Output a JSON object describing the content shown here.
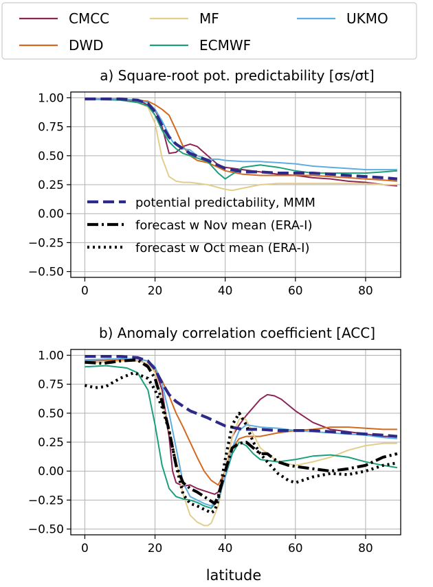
{
  "top_legend": {
    "entries": [
      {
        "label": "CMCC",
        "color": "#8c2355"
      },
      {
        "label": "DWD",
        "color": "#d2691e"
      },
      {
        "label": "MF",
        "color": "#e3cd8a"
      },
      {
        "label": "ECMWF",
        "color": "#17a07a"
      },
      {
        "label": "UKMO",
        "color": "#5dade2"
      }
    ]
  },
  "chart_data": [
    {
      "type": "line",
      "title": "a) Square-root pot. predictability [σs/σt]",
      "xlim": [
        -4,
        90
      ],
      "ylim": [
        -0.55,
        1.05
      ],
      "xticks": [
        0,
        20,
        40,
        60,
        80
      ],
      "yticks": [
        1.0,
        0.75,
        0.5,
        0.25,
        0.0,
        -0.25,
        -0.5
      ],
      "ytick_labels": [
        "1.00",
        "0.75",
        "0.50",
        "0.25",
        "0.00",
        "−0.25",
        "−0.50"
      ],
      "grid": true,
      "legend_position": "center-left",
      "series": [
        {
          "name": "CMCC",
          "color": "#8c2355",
          "style": "solid",
          "x": [
            0,
            10,
            16,
            20,
            22,
            24,
            26,
            28,
            30,
            32,
            35,
            38,
            40,
            45,
            50,
            55,
            60,
            65,
            70,
            75,
            80,
            85,
            89
          ],
          "y": [
            0.99,
            0.99,
            0.97,
            0.9,
            0.75,
            0.52,
            0.53,
            0.58,
            0.6,
            0.58,
            0.5,
            0.42,
            0.4,
            0.38,
            0.36,
            0.34,
            0.33,
            0.31,
            0.3,
            0.28,
            0.27,
            0.25,
            0.24
          ]
        },
        {
          "name": "DWD",
          "color": "#d2691e",
          "style": "solid",
          "x": [
            0,
            10,
            15,
            18,
            20,
            22,
            24,
            26,
            28,
            30,
            32,
            35,
            38,
            40,
            45,
            50,
            55,
            60,
            65,
            70,
            75,
            80,
            85,
            89
          ],
          "y": [
            0.99,
            0.99,
            0.98,
            0.97,
            0.94,
            0.9,
            0.85,
            0.72,
            0.58,
            0.5,
            0.46,
            0.44,
            0.4,
            0.37,
            0.34,
            0.33,
            0.33,
            0.33,
            0.33,
            0.32,
            0.31,
            0.3,
            0.29,
            0.28
          ]
        },
        {
          "name": "MF",
          "color": "#e3cd8a",
          "style": "solid",
          "x": [
            0,
            10,
            15,
            18,
            20,
            22,
            24,
            26,
            28,
            30,
            35,
            40,
            42,
            45,
            50,
            55,
            60,
            65,
            70,
            75,
            80,
            85,
            89
          ],
          "y": [
            0.99,
            0.98,
            0.96,
            0.92,
            0.78,
            0.48,
            0.32,
            0.28,
            0.27,
            0.27,
            0.25,
            0.21,
            0.2,
            0.22,
            0.25,
            0.26,
            0.26,
            0.26,
            0.26,
            0.26,
            0.26,
            0.25,
            0.25
          ]
        },
        {
          "name": "ECMWF",
          "color": "#17a07a",
          "style": "solid",
          "x": [
            0,
            10,
            15,
            18,
            20,
            22,
            24,
            26,
            28,
            30,
            32,
            35,
            38,
            40,
            42,
            45,
            50,
            55,
            60,
            65,
            70,
            75,
            80,
            85,
            89
          ],
          "y": [
            0.99,
            0.98,
            0.96,
            0.93,
            0.85,
            0.72,
            0.62,
            0.56,
            0.52,
            0.5,
            0.48,
            0.45,
            0.35,
            0.3,
            0.34,
            0.4,
            0.42,
            0.4,
            0.37,
            0.35,
            0.35,
            0.35,
            0.35,
            0.36,
            0.37
          ]
        },
        {
          "name": "UKMO",
          "color": "#5dade2",
          "style": "solid",
          "x": [
            0,
            10,
            15,
            18,
            20,
            22,
            25,
            28,
            30,
            32,
            35,
            38,
            40,
            45,
            50,
            55,
            60,
            65,
            70,
            75,
            80,
            85,
            89
          ],
          "y": [
            0.99,
            0.99,
            0.98,
            0.96,
            0.9,
            0.8,
            0.62,
            0.56,
            0.55,
            0.5,
            0.47,
            0.47,
            0.46,
            0.45,
            0.45,
            0.44,
            0.43,
            0.41,
            0.4,
            0.39,
            0.38,
            0.38,
            0.38
          ]
        },
        {
          "name": "potential predictability, MMM",
          "color": "#2e2a8a",
          "style": "dashed",
          "x": [
            0,
            10,
            15,
            18,
            20,
            22,
            24,
            26,
            28,
            30,
            35,
            40,
            45,
            50,
            55,
            60,
            65,
            70,
            75,
            80,
            85,
            89
          ],
          "y": [
            0.99,
            0.99,
            0.98,
            0.95,
            0.88,
            0.76,
            0.66,
            0.6,
            0.56,
            0.52,
            0.46,
            0.39,
            0.36,
            0.36,
            0.35,
            0.35,
            0.35,
            0.34,
            0.33,
            0.32,
            0.31,
            0.3
          ]
        }
      ]
    },
    {
      "type": "line",
      "title": "b) Anomaly correlation coefficient [ACC]",
      "xlabel": "latitude",
      "xlim": [
        -4,
        90
      ],
      "ylim": [
        -0.55,
        1.05
      ],
      "xticks": [
        0,
        20,
        40,
        60,
        80
      ],
      "xtick_labels": [
        "0",
        "20",
        "40",
        "60",
        "80"
      ],
      "yticks": [
        1.0,
        0.75,
        0.5,
        0.25,
        0.0,
        -0.25,
        -0.5
      ],
      "ytick_labels": [
        "1.00",
        "0.75",
        "0.50",
        "0.25",
        "0.00",
        "−0.25",
        "−0.50"
      ],
      "grid": true,
      "series": [
        {
          "name": "CMCC",
          "color": "#8c2355",
          "style": "solid",
          "x": [
            0,
            10,
            16,
            20,
            22,
            24,
            25,
            26,
            28,
            30,
            32,
            35,
            37,
            38,
            40,
            42,
            44,
            46,
            48,
            50,
            52,
            54,
            56,
            60,
            65,
            70,
            75,
            80,
            85,
            89
          ],
          "y": [
            0.95,
            0.96,
            0.95,
            0.88,
            0.7,
            0.3,
            0.0,
            -0.1,
            -0.13,
            -0.12,
            -0.15,
            -0.18,
            -0.2,
            -0.18,
            0.0,
            0.3,
            0.4,
            0.48,
            0.55,
            0.62,
            0.66,
            0.65,
            0.62,
            0.52,
            0.42,
            0.36,
            0.34,
            0.32,
            0.3,
            0.3
          ]
        },
        {
          "name": "DWD",
          "color": "#d2691e",
          "style": "solid",
          "x": [
            0,
            10,
            15,
            18,
            20,
            22,
            24,
            26,
            28,
            30,
            32,
            34,
            36,
            38,
            40,
            42,
            44,
            46,
            48,
            50,
            55,
            60,
            65,
            70,
            75,
            80,
            85,
            89
          ],
          "y": [
            0.95,
            0.96,
            0.97,
            0.95,
            0.88,
            0.78,
            0.65,
            0.5,
            0.38,
            0.25,
            0.12,
            0.0,
            -0.08,
            -0.12,
            0.0,
            0.2,
            0.28,
            0.3,
            0.3,
            0.3,
            0.33,
            0.35,
            0.36,
            0.38,
            0.38,
            0.37,
            0.36,
            0.36
          ]
        },
        {
          "name": "MF",
          "color": "#e3cd8a",
          "style": "solid",
          "x": [
            0,
            10,
            15,
            18,
            20,
            22,
            24,
            26,
            28,
            30,
            32,
            34,
            35,
            36,
            38,
            40,
            42,
            44,
            45,
            46,
            48,
            50,
            55,
            60,
            65,
            70,
            75,
            80,
            85,
            89
          ],
          "y": [
            0.93,
            0.95,
            0.95,
            0.93,
            0.85,
            0.6,
            0.35,
            0.1,
            -0.2,
            -0.38,
            -0.44,
            -0.47,
            -0.47,
            -0.45,
            -0.3,
            0.0,
            0.3,
            0.45,
            0.46,
            0.44,
            0.32,
            0.2,
            0.08,
            0.05,
            0.08,
            0.12,
            0.18,
            0.22,
            0.24,
            0.24
          ]
        },
        {
          "name": "ECMWF",
          "color": "#17a07a",
          "style": "solid",
          "x": [
            0,
            6,
            12,
            15,
            18,
            20,
            22,
            24,
            26,
            28,
            30,
            32,
            34,
            36,
            38,
            40,
            42,
            44,
            46,
            48,
            50,
            55,
            60,
            65,
            70,
            75,
            80,
            85,
            89
          ],
          "y": [
            0.9,
            0.91,
            0.89,
            0.85,
            0.7,
            0.4,
            0.05,
            -0.15,
            -0.22,
            -0.24,
            -0.25,
            -0.27,
            -0.3,
            -0.32,
            -0.25,
            -0.05,
            0.15,
            0.25,
            0.22,
            0.15,
            0.1,
            0.08,
            0.1,
            0.13,
            0.14,
            0.12,
            0.08,
            0.05,
            0.03
          ]
        },
        {
          "name": "UKMO",
          "color": "#5dade2",
          "style": "solid",
          "x": [
            0,
            10,
            15,
            18,
            20,
            22,
            24,
            26,
            28,
            30,
            32,
            34,
            36,
            38,
            40,
            42,
            44,
            46,
            50,
            55,
            60,
            65,
            70,
            75,
            80,
            85,
            89
          ],
          "y": [
            0.96,
            0.97,
            0.97,
            0.95,
            0.9,
            0.75,
            0.5,
            0.2,
            -0.1,
            -0.22,
            -0.25,
            -0.28,
            -0.3,
            -0.25,
            -0.05,
            0.2,
            0.35,
            0.4,
            0.38,
            0.37,
            0.35,
            0.34,
            0.33,
            0.32,
            0.31,
            0.29,
            0.28
          ]
        },
        {
          "name": "potential predictability, MMM",
          "color": "#2e2a8a",
          "style": "dashed",
          "x": [
            0,
            10,
            15,
            18,
            20,
            22,
            24,
            26,
            28,
            30,
            35,
            40,
            45,
            50,
            55,
            60,
            65,
            70,
            75,
            80,
            85,
            89
          ],
          "y": [
            0.99,
            0.99,
            0.98,
            0.95,
            0.88,
            0.76,
            0.66,
            0.6,
            0.56,
            0.52,
            0.46,
            0.39,
            0.36,
            0.36,
            0.35,
            0.35,
            0.35,
            0.34,
            0.33,
            0.32,
            0.31,
            0.3
          ]
        },
        {
          "name": "forecast w Nov mean (ERA-I)",
          "color": "#000000",
          "style": "dashdot",
          "x": [
            0,
            5,
            10,
            15,
            18,
            20,
            22,
            24,
            25,
            26,
            28,
            30,
            32,
            34,
            36,
            37,
            38,
            40,
            42,
            44,
            46,
            48,
            50,
            52,
            55,
            58,
            60,
            65,
            70,
            75,
            80,
            85,
            89
          ],
          "y": [
            0.94,
            0.93,
            0.95,
            0.96,
            0.9,
            0.8,
            0.6,
            0.35,
            0.2,
            0.05,
            -0.1,
            -0.15,
            -0.18,
            -0.22,
            -0.26,
            -0.28,
            -0.22,
            0.0,
            0.2,
            0.24,
            0.25,
            0.2,
            0.15,
            0.15,
            0.08,
            0.05,
            0.04,
            0.02,
            0.0,
            0.02,
            0.05,
            0.12,
            0.15
          ]
        },
        {
          "name": "forecast w Oct mean (ERA-I)",
          "color": "#000000",
          "style": "dotted",
          "x": [
            0,
            3,
            6,
            10,
            14,
            18,
            20,
            22,
            24,
            26,
            28,
            30,
            32,
            34,
            36,
            37,
            38,
            40,
            42,
            44,
            46,
            48,
            50,
            52,
            55,
            58,
            60,
            62,
            65,
            70,
            75,
            80,
            85,
            89
          ],
          "y": [
            0.74,
            0.72,
            0.73,
            0.8,
            0.85,
            0.8,
            0.7,
            0.55,
            0.35,
            0.05,
            -0.2,
            -0.28,
            -0.3,
            -0.33,
            -0.36,
            -0.34,
            -0.25,
            0.1,
            0.4,
            0.5,
            0.4,
            0.25,
            0.15,
            0.08,
            -0.02,
            -0.08,
            -0.1,
            -0.08,
            -0.05,
            -0.02,
            -0.03,
            0.0,
            0.05,
            0.07
          ]
        }
      ]
    }
  ],
  "legend_a": {
    "entries": [
      {
        "label": "potential predictability, MMM",
        "color": "#2e2a8a",
        "style": "dashed"
      },
      {
        "label": "forecast w Nov mean (ERA-I)",
        "color": "#000000",
        "style": "dashdot"
      },
      {
        "label": "forecast w Oct mean (ERA-I)",
        "color": "#000000",
        "style": "dotted"
      }
    ]
  }
}
